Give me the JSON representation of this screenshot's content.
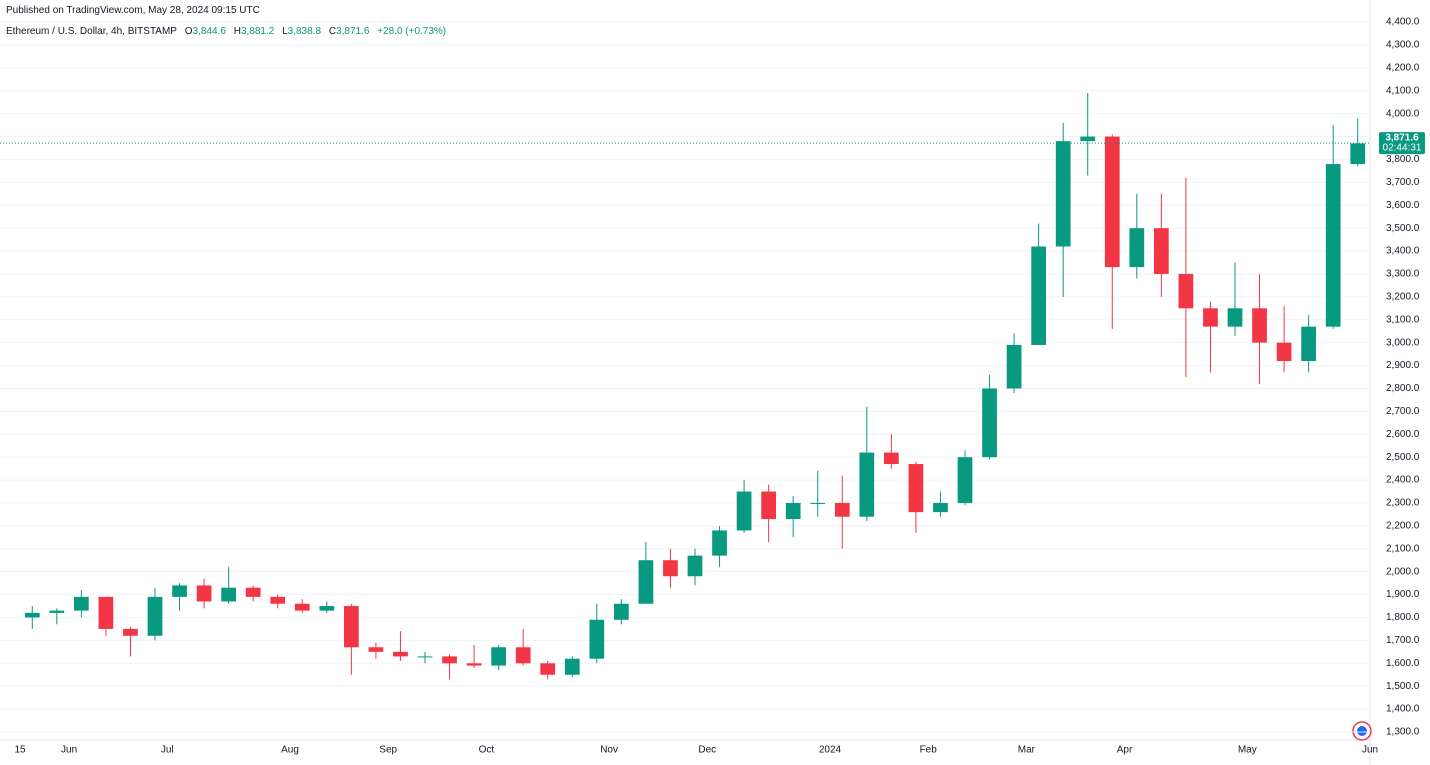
{
  "chart_data": {
    "type": "candlestick",
    "title": "Published on TradingView.com, May 28, 2024 09:15 UTC",
    "legend": {
      "symbol": "Ethereum / U.S. Dollar, 4h, BITSTAMP",
      "open_label": "O",
      "open": "3,844.6",
      "high_label": "H",
      "high": "3,881.2",
      "low_label": "L",
      "low": "3,838.8",
      "close_label": "C",
      "close": "3,871.6",
      "change": "+28.0 (+0.73%)"
    },
    "last_price": {
      "value": 3871.6,
      "label": "3,871.6"
    },
    "countdown": "02:44:31",
    "up_color": "#089981",
    "down_color": "#f23645",
    "grid": true,
    "categories": [
      "15",
      null,
      "Jun",
      null,
      null,
      null,
      "Jul",
      null,
      null,
      null,
      null,
      "Aug",
      null,
      null,
      null,
      "Sep",
      null,
      null,
      null,
      "Oct",
      null,
      null,
      null,
      null,
      "Nov",
      null,
      null,
      null,
      "Dec",
      null,
      null,
      null,
      null,
      "2024",
      null,
      null,
      null,
      "Feb",
      null,
      null,
      null,
      "Mar",
      null,
      null,
      null,
      "Apr",
      null,
      null,
      null,
      null,
      "May",
      null,
      null,
      null,
      null,
      "Jun"
    ],
    "open": [
      1800,
      1820,
      1830,
      1890,
      1750,
      1720,
      1890,
      1940,
      1870,
      1930,
      1890,
      1860,
      1830,
      1850,
      1670,
      1650,
      1630,
      1630,
      1600,
      1590,
      1670,
      1600,
      1550,
      1620,
      1790,
      1860,
      2050,
      1980,
      2070,
      2180,
      2350,
      2230,
      2300,
      2300,
      2240,
      2520,
      2470,
      2260,
      2300,
      2500,
      2800,
      2990,
      3420,
      3880,
      3900,
      3330,
      3500,
      3300,
      3150,
      3070,
      3150,
      3000,
      2920,
      3070,
      3780,
      null
    ],
    "high": [
      1850,
      1840,
      1920,
      1890,
      1760,
      1930,
      1950,
      1970,
      2020,
      1940,
      1900,
      1880,
      1870,
      1860,
      1690,
      1740,
      1650,
      1640,
      1680,
      1680,
      1750,
      1610,
      1630,
      1860,
      1880,
      2130,
      2100,
      2100,
      2200,
      2400,
      2380,
      2330,
      2440,
      2420,
      2720,
      2600,
      2480,
      2350,
      2530,
      2860,
      3040,
      3520,
      3960,
      4090,
      3910,
      3650,
      3650,
      3720,
      3180,
      3350,
      3300,
      3160,
      3120,
      3950,
      3980,
      null
    ],
    "low": [
      1750,
      1770,
      1800,
      1720,
      1630,
      1700,
      1830,
      1840,
      1860,
      1870,
      1840,
      1820,
      1820,
      1550,
      1620,
      1610,
      1600,
      1530,
      1580,
      1570,
      1590,
      1530,
      1540,
      1600,
      1770,
      1860,
      1930,
      1940,
      2020,
      2170,
      2130,
      2150,
      2240,
      2100,
      2220,
      2450,
      2170,
      2240,
      2290,
      2490,
      2780,
      2990,
      3200,
      3730,
      3060,
      3280,
      3200,
      2850,
      2870,
      3030,
      2820,
      2870,
      2870,
      3060,
      3770,
      null
    ],
    "close": [
      1820,
      1830,
      1890,
      1750,
      1720,
      1890,
      1940,
      1870,
      1930,
      1890,
      1860,
      1830,
      1850,
      1670,
      1650,
      1630,
      1630,
      1600,
      1590,
      1670,
      1600,
      1550,
      1620,
      1790,
      1860,
      2050,
      1980,
      2070,
      2180,
      2350,
      2230,
      2300,
      2300,
      2240,
      2520,
      2470,
      2260,
      2300,
      2500,
      2800,
      2990,
      3420,
      3880,
      3900,
      3330,
      3500,
      3300,
      3150,
      3070,
      3150,
      3000,
      2920,
      3070,
      3780,
      3870,
      null
    ],
    "ylim": [
      1265,
      4409
    ],
    "yticks": [
      {
        "value": 1300,
        "label": "1,300.0"
      },
      {
        "value": 1400,
        "label": "1,400.0"
      },
      {
        "value": 1500,
        "label": "1,500.0"
      },
      {
        "value": 1600,
        "label": "1,600.0"
      },
      {
        "value": 1700,
        "label": "1,700.0"
      },
      {
        "value": 1800,
        "label": "1,800.0"
      },
      {
        "value": 1900,
        "label": "1,900.0"
      },
      {
        "value": 2000,
        "label": "2,000.0"
      },
      {
        "value": 2100,
        "label": "2,100.0"
      },
      {
        "value": 2200,
        "label": "2,200.0"
      },
      {
        "value": 2300,
        "label": "2,300.0"
      },
      {
        "value": 2400,
        "label": "2,400.0"
      },
      {
        "value": 2500,
        "label": "2,500.0"
      },
      {
        "value": 2600,
        "label": "2,600.0"
      },
      {
        "value": 2700,
        "label": "2,700.0"
      },
      {
        "value": 2800,
        "label": "2,800.0"
      },
      {
        "value": 2900,
        "label": "2,900.0"
      },
      {
        "value": 3000,
        "label": "3,000.0"
      },
      {
        "value": 3100,
        "label": "3,100.0"
      },
      {
        "value": 3200,
        "label": "3,200.0"
      },
      {
        "value": 3300,
        "label": "3,300.0"
      },
      {
        "value": 3400,
        "label": "3,400.0"
      },
      {
        "value": 3500,
        "label": "3,500.0"
      },
      {
        "value": 3600,
        "label": "3,600.0"
      },
      {
        "value": 3700,
        "label": "3,700.0"
      },
      {
        "value": 3800,
        "label": "3,800.0"
      },
      {
        "value": 3900,
        "label": "3,900.0"
      },
      {
        "value": 4000,
        "label": "4,000.0"
      },
      {
        "value": 4100,
        "label": "4,100.0"
      },
      {
        "value": 4200,
        "label": "4,200.0"
      },
      {
        "value": 4300,
        "label": "4,300.0"
      },
      {
        "value": 4400,
        "label": "4,400.0"
      }
    ]
  }
}
